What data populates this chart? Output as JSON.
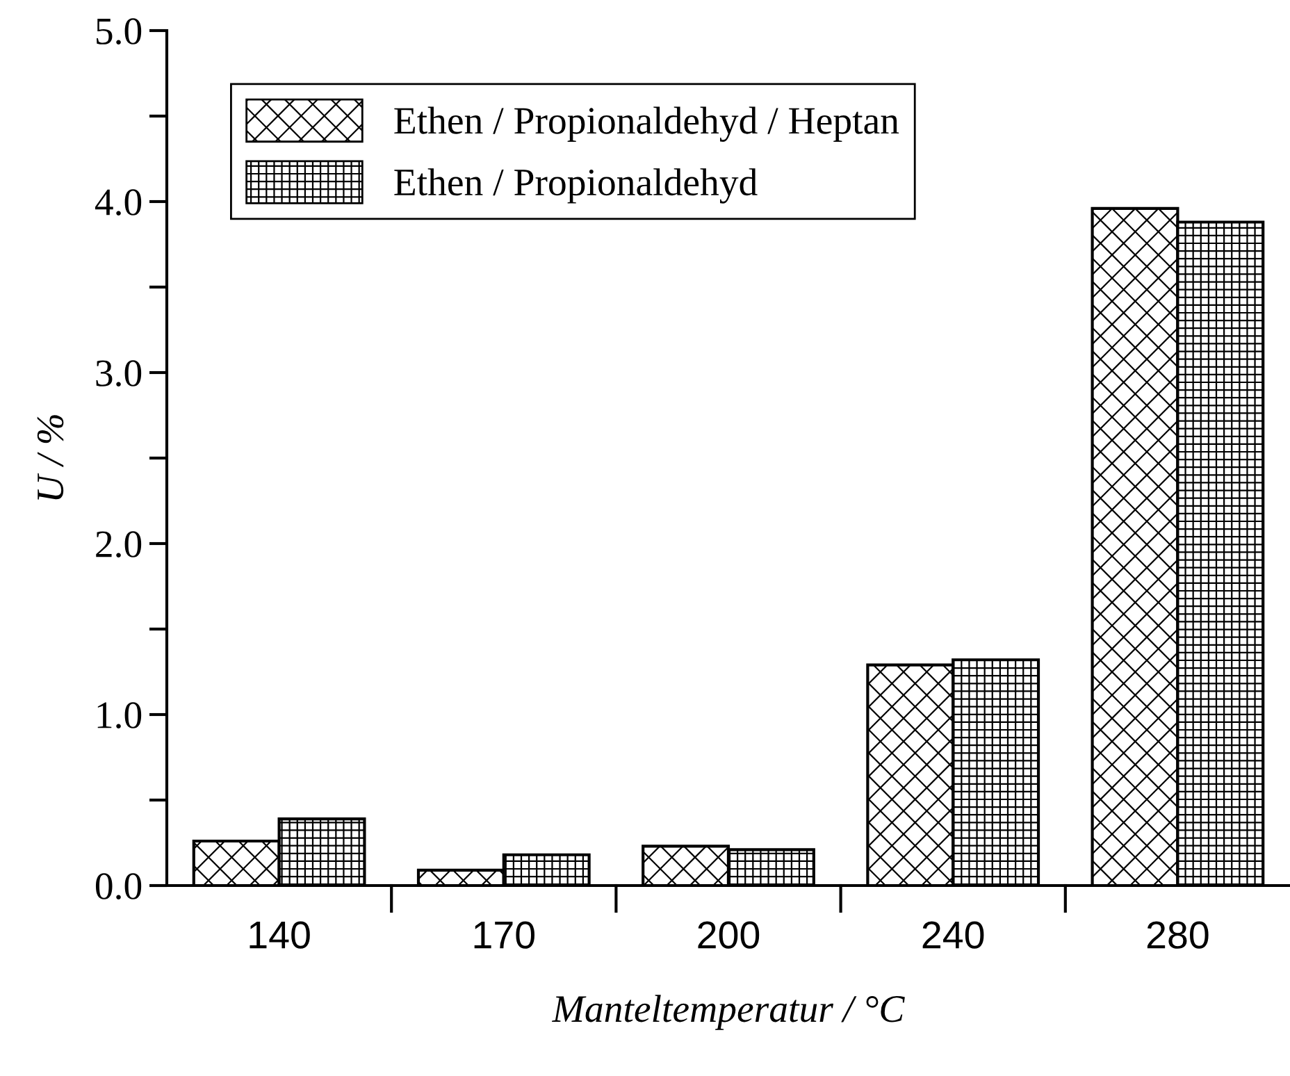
{
  "chart_data": {
    "type": "bar",
    "xlabel": "Manteltemperatur / °C",
    "ylabel": "U / %",
    "categories": [
      "140",
      "170",
      "200",
      "240",
      "280"
    ],
    "series": [
      {
        "name": "Ethen / Propionaldehyd / Heptan",
        "color": "#000000",
        "values": [
          0.26,
          0.09,
          0.23,
          1.29,
          3.96
        ]
      },
      {
        "name": "Ethen / Propionaldehyd",
        "color": "#000000",
        "values": [
          0.39,
          0.18,
          0.21,
          1.32,
          3.88
        ]
      }
    ],
    "ylim": [
      0,
      5
    ],
    "yticks": [
      {
        "value": 0,
        "label": "0.0"
      },
      {
        "value": 0.5,
        "label": null
      },
      {
        "value": 1,
        "label": "1.0"
      },
      {
        "value": 1.5,
        "label": null
      },
      {
        "value": 2,
        "label": "2.0"
      },
      {
        "value": 2.5,
        "label": null
      },
      {
        "value": 3,
        "label": "3.0"
      },
      {
        "value": 3.5,
        "label": null
      },
      {
        "value": 4,
        "label": "4.0"
      },
      {
        "value": 4.5,
        "label": null
      },
      {
        "value": 5,
        "label": "5.0"
      }
    ],
    "legend": "top left",
    "grid": false
  }
}
